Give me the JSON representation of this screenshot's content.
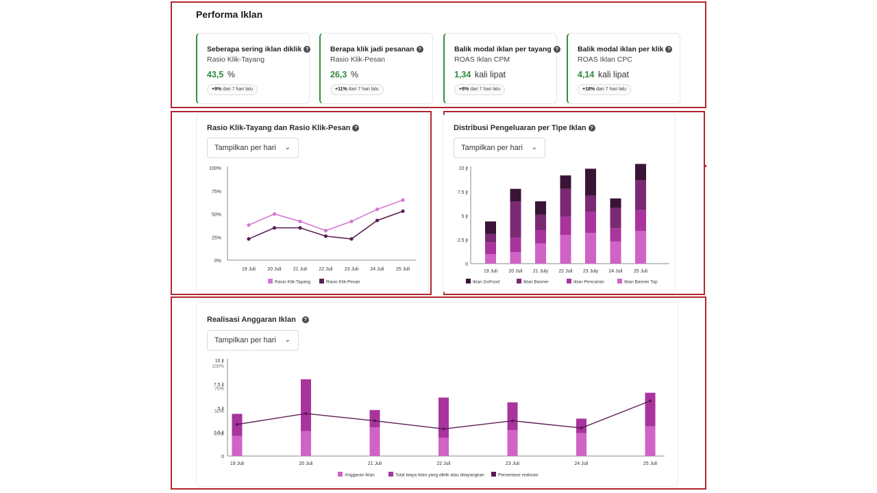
{
  "performa": {
    "title": "Performa Iklan",
    "cards": [
      {
        "title": "Seberapa sering iklan diklik",
        "subtitle": "Rasio Klik-Tayang",
        "value": "43,5",
        "unit": "%",
        "change": "+9%",
        "change_suffix": "dari 7 hari lalu"
      },
      {
        "title": "Berapa klik jadi pesanan",
        "subtitle": "Rasio Klik-Pesan",
        "value": "26,3",
        "unit": "%",
        "change": "+11%",
        "change_suffix": "dari 7 hari lalu"
      },
      {
        "title": "Balik modal iklan per tayang",
        "subtitle": "ROAS Iklan CPM",
        "value": "1,34",
        "unit": "kali lipat",
        "change": "+8%",
        "change_suffix": "dari 7 hari lalu"
      },
      {
        "title": "Balik modal iklan per klik",
        "subtitle": "ROAS Iklan CPC",
        "value": "4,14",
        "unit": "kali lipat",
        "change": "+18%",
        "change_suffix": "dari 7 hari lalu"
      }
    ],
    "help_glyph": "?"
  },
  "dropdown_label": "Tampilkan per hari",
  "chevron_glyph": "⌄",
  "colors": {
    "dark": "#3a1436",
    "purple": "#7a2a72",
    "magenta": "#a9349e",
    "pink": "#cf63c6",
    "line_pink": "#d577d0",
    "line_dark": "#5a1d53",
    "green": "#2e8a3d",
    "border_red": "#b1242a"
  },
  "chart_data": [
    {
      "id": "ratio",
      "type": "line",
      "title": "Rasio Klik-Tayang dan Rasio Klik-Pesan",
      "categories": [
        "19 Juli",
        "20 Juli",
        "21 Juli",
        "22 Juli",
        "23 Juli",
        "24 Juli",
        "25 Juli"
      ],
      "yticks": [
        "0%",
        "25%",
        "50%",
        "75%",
        "100%"
      ],
      "ylim": [
        0,
        100
      ],
      "series": [
        {
          "name": "Rasio Klik-Tayang",
          "color": "#d577d0",
          "values": [
            38,
            50,
            42,
            32,
            42,
            55,
            65
          ]
        },
        {
          "name": "Rasio Klik-Pesan",
          "color": "#5a1d53",
          "values": [
            23,
            35,
            35,
            26,
            23,
            43,
            53
          ]
        }
      ]
    },
    {
      "id": "distribusi",
      "type": "bar",
      "stacked": true,
      "title": "Distribusi Pengeluaran per Tipe Iklan",
      "categories": [
        "19 Juli",
        "20 Juli",
        "21 July",
        "22 Juli",
        "23 July",
        "24 Juli",
        "25 Juli"
      ],
      "yticks": [
        "0",
        "2.5 jt",
        "5 jt",
        "7.5 jt",
        "10 jt"
      ],
      "ylim": [
        0,
        10
      ],
      "series": [
        {
          "name": "Iklan Banner Top",
          "color": "#cf63c6",
          "values": [
            1.0,
            1.2,
            2.1,
            3.0,
            3.2,
            2.3,
            3.4
          ]
        },
        {
          "name": "Iklan Pencarian",
          "color": "#a9349e",
          "values": [
            1.2,
            1.5,
            1.4,
            1.9,
            2.2,
            1.4,
            2.2
          ]
        },
        {
          "name": "Iklan Banner",
          "color": "#7a2a72",
          "values": [
            0.9,
            3.8,
            1.6,
            2.9,
            1.7,
            2.1,
            3.1
          ]
        },
        {
          "name": "Iklan GoFood",
          "color": "#3a1436",
          "values": [
            1.3,
            1.3,
            1.4,
            1.4,
            2.8,
            1.0,
            1.7
          ]
        }
      ],
      "legend_order": [
        "Iklan GoFood",
        "Iklan Banner",
        "Iklan Pencarian",
        "Iklan Banner Top"
      ]
    },
    {
      "id": "realisasi",
      "type": "bar",
      "stacked": true,
      "title": "Realisasi Anggaran Iklan",
      "categories": [
        "19 Juli",
        "20 Juli",
        "21 Juli",
        "22 Juli",
        "23 Juli",
        "24 Juli",
        "25 Juli"
      ],
      "yticks_left": [
        "0",
        "2.5 jt",
        "5 jt",
        "7.5 jt",
        "10 jt"
      ],
      "yticks_right": [
        "0%",
        "25%",
        "50%",
        "75%",
        "100%"
      ],
      "ylim": [
        0,
        10
      ],
      "series": [
        {
          "name": "Anggaran Iklan",
          "color": "#cf63c6",
          "values": [
            2.1,
            2.6,
            3.0,
            1.9,
            2.7,
            2.4,
            3.1
          ]
        },
        {
          "name": "Total biaya iklan yang diklik atau ditayangkan",
          "color": "#a9349e",
          "values": [
            2.3,
            5.4,
            1.8,
            4.2,
            2.9,
            1.5,
            3.5
          ]
        }
      ],
      "line": {
        "name": "Persentase realisasi",
        "color": "#5a1d53",
        "values": [
          35,
          47,
          39,
          30,
          39,
          31,
          61
        ]
      }
    }
  ]
}
